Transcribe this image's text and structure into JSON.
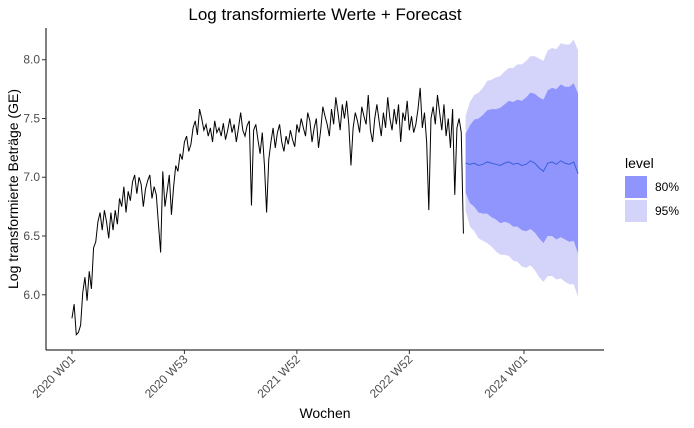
{
  "chart_data": {
    "type": "line",
    "title": "Log transformierte Werte + Forecast",
    "x_label": "Wochen",
    "y_label": "Log transformierte Beträge (GE)",
    "legend_title": "level",
    "legend_position": "right",
    "grid": false,
    "xlim": [
      -12,
      246
    ],
    "ylim": [
      5.53,
      8.27
    ],
    "xticks": [
      {
        "value": 0,
        "label": "2020 W01"
      },
      {
        "value": 52,
        "label": "2020 W53"
      },
      {
        "value": 104,
        "label": "2021 W52"
      },
      {
        "value": 156,
        "label": "2022 W52"
      },
      {
        "value": 209,
        "label": "2024 W01"
      }
    ],
    "yticks": [
      {
        "value": 6,
        "label": "6.0"
      },
      {
        "value": 6.5,
        "label": "6.5"
      },
      {
        "value": 7,
        "label": "7.0"
      },
      {
        "value": 7.5,
        "label": "7.5"
      },
      {
        "value": 8,
        "label": "8.0"
      }
    ],
    "bands": [
      {
        "name": "95%",
        "color": "#d4d4fb",
        "x": [
          182,
          184,
          186,
          188,
          190,
          192,
          194,
          196,
          198,
          200,
          202,
          204,
          206,
          208,
          210,
          212,
          214,
          216,
          218,
          220,
          222,
          224,
          226,
          228,
          230,
          232,
          234
        ],
        "lower": [
          6.72,
          6.58,
          6.54,
          6.48,
          6.46,
          6.44,
          6.41,
          6.37,
          6.34,
          6.34,
          6.33,
          6.29,
          6.28,
          6.24,
          6.23,
          6.25,
          6.21,
          6.15,
          6.11,
          6.16,
          6.16,
          6.13,
          6.14,
          6.11,
          6.09,
          6.09,
          5.98
        ],
        "upper": [
          7.52,
          7.64,
          7.7,
          7.72,
          7.76,
          7.82,
          7.83,
          7.85,
          7.86,
          7.9,
          7.93,
          7.93,
          7.96,
          7.96,
          7.99,
          8.03,
          8.03,
          8.01,
          7.99,
          8.08,
          8.1,
          8.09,
          8.14,
          8.13,
          8.13,
          8.17,
          8.08
        ]
      },
      {
        "name": "80%",
        "color": "#8f95fd",
        "x": [
          182,
          184,
          186,
          188,
          190,
          192,
          194,
          196,
          198,
          200,
          202,
          204,
          206,
          208,
          210,
          212,
          214,
          216,
          218,
          220,
          222,
          224,
          226,
          228,
          230,
          232,
          234
        ],
        "lower": [
          6.87,
          6.78,
          6.75,
          6.7,
          6.69,
          6.69,
          6.66,
          6.64,
          6.61,
          6.62,
          6.61,
          6.58,
          6.58,
          6.55,
          6.54,
          6.56,
          6.53,
          6.48,
          6.44,
          6.5,
          6.5,
          6.47,
          6.49,
          6.47,
          6.45,
          6.46,
          6.35
        ],
        "upper": [
          7.37,
          7.44,
          7.49,
          7.5,
          7.53,
          7.57,
          7.58,
          7.58,
          7.59,
          7.62,
          7.65,
          7.64,
          7.66,
          7.65,
          7.68,
          7.72,
          7.71,
          7.68,
          7.66,
          7.74,
          7.76,
          7.75,
          7.79,
          7.77,
          7.77,
          7.8,
          7.71
        ]
      }
    ],
    "series": [
      {
        "color": "#000000",
        "x": [
          0,
          1,
          2,
          3,
          4,
          5,
          6,
          7,
          8,
          9,
          10,
          11,
          12,
          13,
          14,
          15,
          16,
          17,
          18,
          19,
          20,
          21,
          22,
          23,
          24,
          25,
          26,
          27,
          28,
          29,
          30,
          31,
          32,
          33,
          34,
          35,
          36,
          37,
          38,
          39,
          40,
          41,
          42,
          43,
          44,
          45,
          46,
          47,
          48,
          49,
          50,
          51,
          52,
          53,
          54,
          55,
          56,
          57,
          58,
          59,
          60,
          61,
          62,
          63,
          64,
          65,
          66,
          67,
          68,
          69,
          70,
          71,
          72,
          73,
          74,
          75,
          76,
          77,
          78,
          79,
          80,
          81,
          82,
          83,
          84,
          85,
          86,
          87,
          88,
          89,
          90,
          91,
          92,
          93,
          94,
          95,
          96,
          97,
          98,
          99,
          100,
          101,
          102,
          103,
          104,
          105,
          106,
          107,
          108,
          109,
          110,
          111,
          112,
          113,
          114,
          115,
          116,
          117,
          118,
          119,
          120,
          121,
          122,
          123,
          124,
          125,
          126,
          127,
          128,
          129,
          130,
          131,
          132,
          133,
          134,
          135,
          136,
          137,
          138,
          139,
          140,
          141,
          142,
          143,
          144,
          145,
          146,
          147,
          148,
          149,
          150,
          151,
          152,
          153,
          154,
          155,
          156,
          157,
          158,
          159,
          160,
          161,
          162,
          163,
          164,
          165,
          166,
          167,
          168,
          169,
          170,
          171,
          172,
          173,
          174,
          175,
          176,
          177,
          178,
          179,
          180,
          181
        ],
        "values": [
          5.8,
          5.92,
          5.66,
          5.68,
          5.74,
          6.02,
          6.15,
          5.95,
          6.2,
          6.05,
          6.4,
          6.45,
          6.62,
          6.7,
          6.55,
          6.72,
          6.62,
          6.48,
          6.7,
          6.55,
          6.72,
          6.6,
          6.82,
          6.75,
          6.92,
          6.7,
          6.88,
          6.8,
          6.96,
          7.02,
          6.86,
          7.0,
          6.94,
          6.75,
          6.9,
          6.97,
          7.02,
          6.82,
          6.92,
          6.85,
          6.6,
          6.36,
          7.05,
          6.75,
          6.88,
          7.02,
          6.68,
          6.92,
          7.1,
          7.05,
          7.2,
          7.15,
          7.3,
          7.35,
          7.22,
          7.28,
          7.42,
          7.48,
          7.36,
          7.58,
          7.5,
          7.4,
          7.45,
          7.35,
          7.42,
          7.3,
          7.48,
          7.38,
          7.42,
          7.35,
          7.46,
          7.32,
          7.4,
          7.5,
          7.38,
          7.45,
          7.3,
          7.42,
          7.55,
          7.4,
          7.35,
          7.44,
          7.48,
          6.76,
          7.4,
          7.45,
          7.32,
          7.2,
          7.38,
          7.1,
          6.7,
          7.15,
          7.3,
          7.42,
          7.25,
          7.38,
          7.45,
          7.3,
          7.22,
          7.35,
          7.28,
          7.4,
          7.32,
          7.26,
          7.45,
          7.38,
          7.5,
          7.42,
          7.35,
          7.55,
          7.48,
          7.3,
          7.42,
          7.5,
          7.25,
          7.4,
          7.6,
          7.52,
          7.45,
          7.35,
          7.58,
          7.45,
          7.68,
          7.55,
          7.4,
          7.62,
          7.5,
          7.65,
          7.45,
          7.1,
          7.42,
          7.55,
          7.48,
          7.38,
          7.6,
          7.52,
          7.45,
          7.7,
          7.4,
          7.3,
          7.5,
          7.62,
          7.48,
          7.35,
          7.55,
          7.42,
          7.68,
          7.5,
          7.4,
          7.58,
          7.45,
          7.62,
          7.3,
          7.55,
          7.48,
          7.65,
          7.4,
          7.52,
          7.38,
          7.45,
          7.58,
          7.76,
          7.42,
          7.55,
          7.3,
          6.72,
          7.5,
          7.6,
          7.45,
          7.7,
          7.55,
          7.4,
          7.62,
          7.35,
          7.5,
          7.25,
          7.58,
          6.85,
          7.42,
          7.5,
          7.38,
          6.52
        ]
      },
      {
        "color": "#3d5fd9",
        "x": [
          182,
          184,
          186,
          188,
          190,
          192,
          194,
          196,
          198,
          200,
          202,
          204,
          206,
          208,
          210,
          212,
          214,
          216,
          218,
          220,
          222,
          224,
          226,
          228,
          230,
          232,
          234
        ],
        "values": [
          7.12,
          7.11,
          7.12,
          7.1,
          7.11,
          7.13,
          7.12,
          7.11,
          7.1,
          7.12,
          7.13,
          7.11,
          7.12,
          7.1,
          7.11,
          7.14,
          7.12,
          7.08,
          7.05,
          7.12,
          7.13,
          7.11,
          7.14,
          7.12,
          7.11,
          7.13,
          7.03
        ]
      }
    ]
  }
}
